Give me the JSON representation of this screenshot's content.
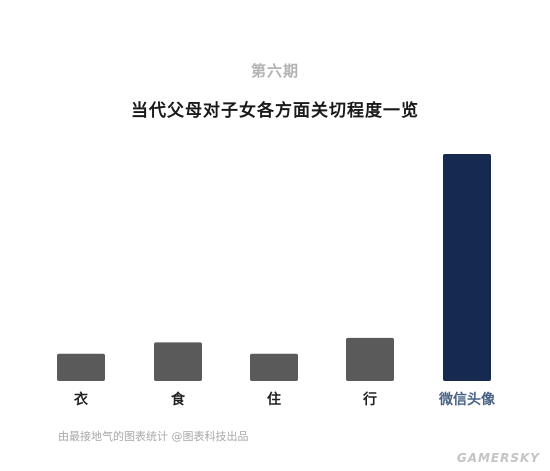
{
  "header": {
    "issue": "第六期",
    "title": "当代父母对子女各方面关切程度一览"
  },
  "footer": {
    "source": "由最接地气的图表统计 @图表科技出品",
    "watermark": "GAMERSKY"
  },
  "chart_data": {
    "type": "bar",
    "title": "当代父母对子女各方面关切程度一览",
    "categories": [
      "衣",
      "食",
      "住",
      "行",
      "微信头像"
    ],
    "values": [
      12,
      17,
      12,
      19,
      100
    ],
    "ylim": [
      0,
      100
    ],
    "grid": false,
    "colors": [
      "#5a5a5a",
      "#5a5a5a",
      "#5a5a5a",
      "#5a5a5a",
      "#152a4e"
    ],
    "label_colors": [
      "#222222",
      "#222222",
      "#222222",
      "#222222",
      "#4a6384"
    ]
  }
}
